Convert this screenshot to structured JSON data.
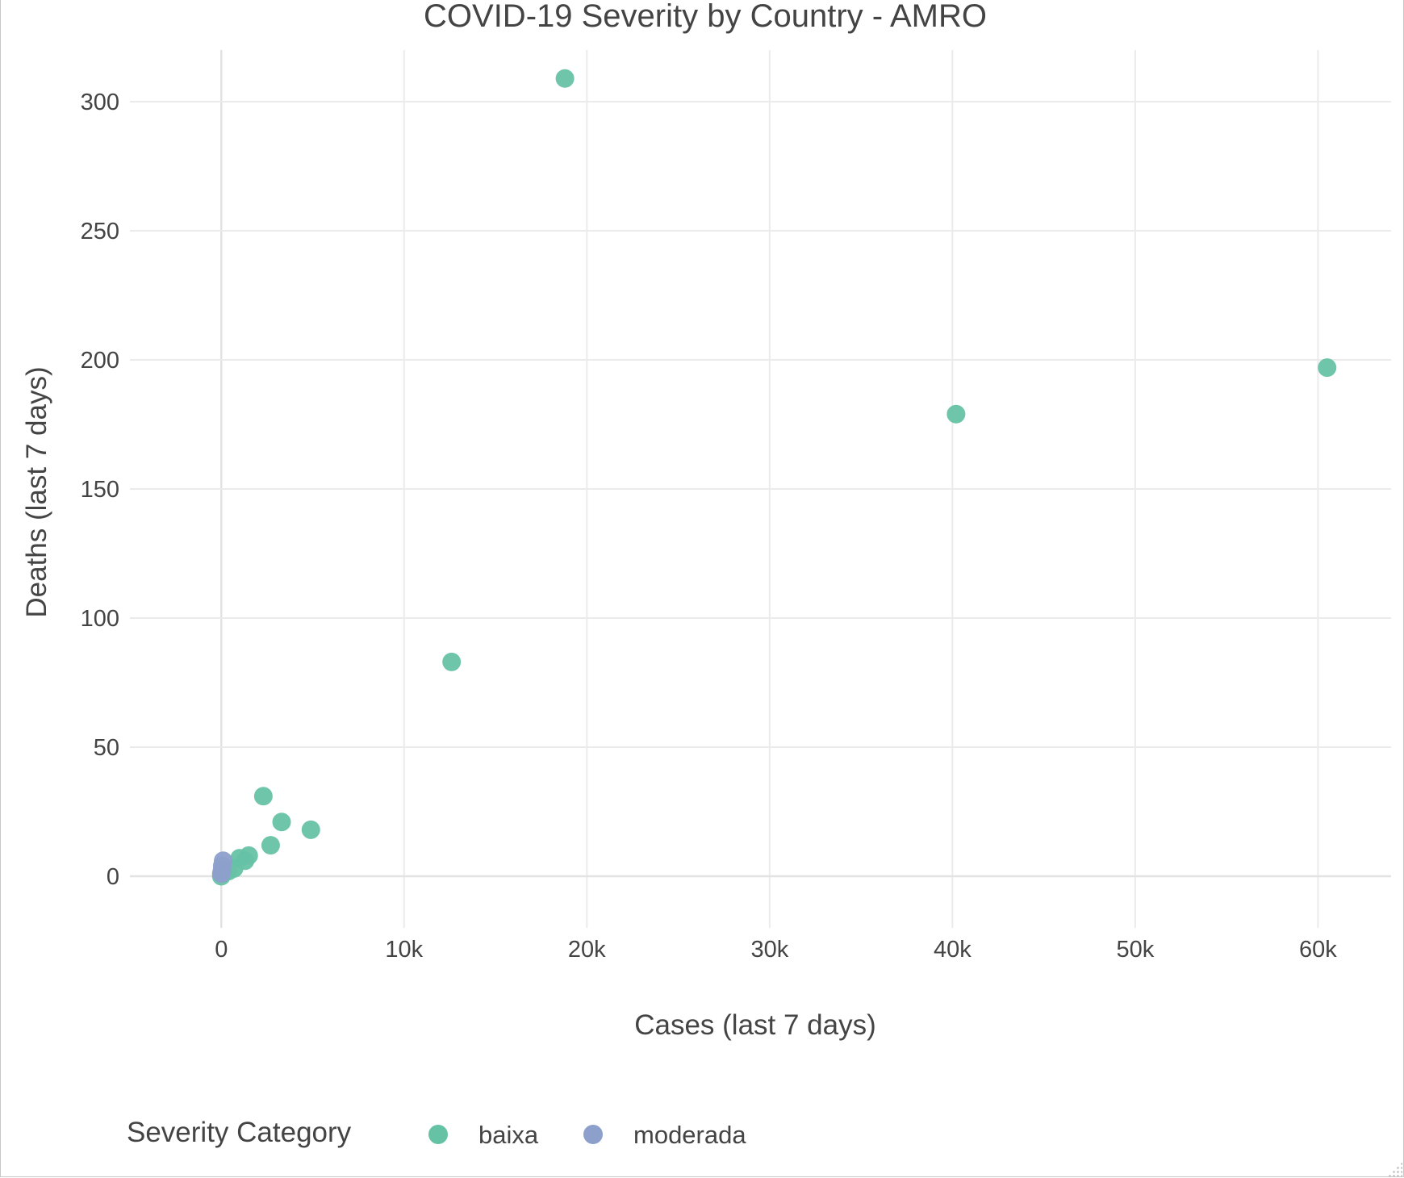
{
  "chart_data": {
    "type": "scatter",
    "title": "COVID-19 Severity by Country - AMRO",
    "xlabel": "Cases (last 7 days)",
    "ylabel": "Deaths (last 7 days)",
    "xlim": [
      -5000,
      64000
    ],
    "ylim": [
      -20,
      320
    ],
    "x_ticks": [
      0,
      10000,
      20000,
      30000,
      40000,
      50000,
      60000
    ],
    "x_tick_labels": [
      "0",
      "10k",
      "20k",
      "30k",
      "40k",
      "50k",
      "60k"
    ],
    "y_ticks": [
      0,
      50,
      100,
      150,
      200,
      250,
      300
    ],
    "y_tick_labels": [
      "0",
      "50",
      "100",
      "150",
      "200",
      "250",
      "300"
    ],
    "grid": true,
    "legend": {
      "title": "Severity Category",
      "placement": "bottom-left",
      "orientation": "horizontal"
    },
    "series": [
      {
        "name": "baixa",
        "color": "#66c2a5",
        "points": [
          {
            "x": 18800,
            "y": 309
          },
          {
            "x": 60500,
            "y": 197
          },
          {
            "x": 40200,
            "y": 179
          },
          {
            "x": 12600,
            "y": 83
          },
          {
            "x": 2300,
            "y": 31
          },
          {
            "x": 3300,
            "y": 21
          },
          {
            "x": 4900,
            "y": 18
          },
          {
            "x": 2700,
            "y": 12
          },
          {
            "x": 1500,
            "y": 8
          },
          {
            "x": 1000,
            "y": 7
          },
          {
            "x": 1300,
            "y": 6
          },
          {
            "x": 700,
            "y": 3
          },
          {
            "x": 400,
            "y": 2
          },
          {
            "x": 100,
            "y": 1
          },
          {
            "x": 0,
            "y": 0
          }
        ]
      },
      {
        "name": "moderada",
        "color": "#8da0cb",
        "points": [
          {
            "x": 100,
            "y": 6
          },
          {
            "x": 50,
            "y": 4
          },
          {
            "x": 30,
            "y": 2
          },
          {
            "x": 0,
            "y": 1
          }
        ]
      }
    ]
  }
}
